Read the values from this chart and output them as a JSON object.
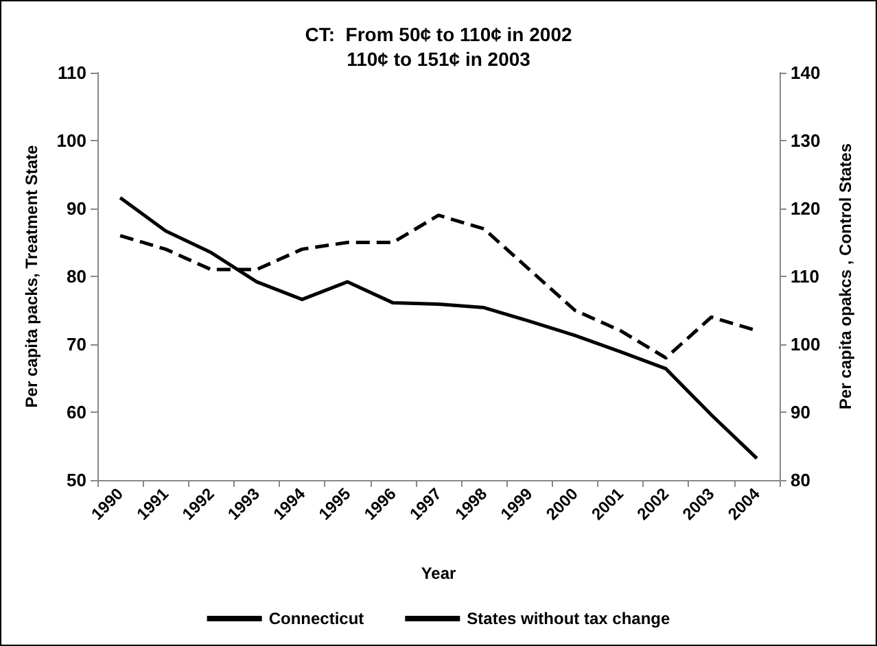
{
  "chart_data": {
    "type": "line",
    "title": "CT:  From 50¢ to 110¢ in 2002\n110¢ to 151¢ in 2003",
    "xlabel": "Year",
    "ylabel": "Per capita packs, Treatment State",
    "y2label": "Per capita opakcs , Control States",
    "categories": [
      "1990",
      "1991",
      "1992",
      "1993",
      "1994",
      "1995",
      "1996",
      "1997",
      "1998",
      "1999",
      "2000",
      "2001",
      "2002",
      "2003",
      "2004"
    ],
    "series": [
      {
        "name": "Connecticut",
        "color": "#000000",
        "line_style": "solid",
        "values": [
          91.6,
          86.7,
          83.5,
          79.2,
          76.6,
          79.2,
          76.1,
          75.9,
          75.4,
          73.4,
          71.3,
          68.9,
          66.4,
          59.6,
          53.2
        ]
      },
      {
        "name": "States without tax change",
        "color": "#000000",
        "line_style": "dashed",
        "axis": "y2",
        "values": [
          116,
          114,
          111,
          111,
          114,
          115,
          115,
          119,
          117,
          111,
          105,
          102,
          98,
          104,
          102
        ]
      }
    ],
    "ylim": [
      50,
      110
    ],
    "yticks": [
      50,
      60,
      70,
      80,
      90,
      100,
      110
    ],
    "y2lim": [
      80,
      140
    ],
    "y2ticks": [
      80,
      90,
      100,
      110,
      120,
      130,
      140
    ],
    "grid": false,
    "legend": "bottom",
    "marker": "none"
  }
}
